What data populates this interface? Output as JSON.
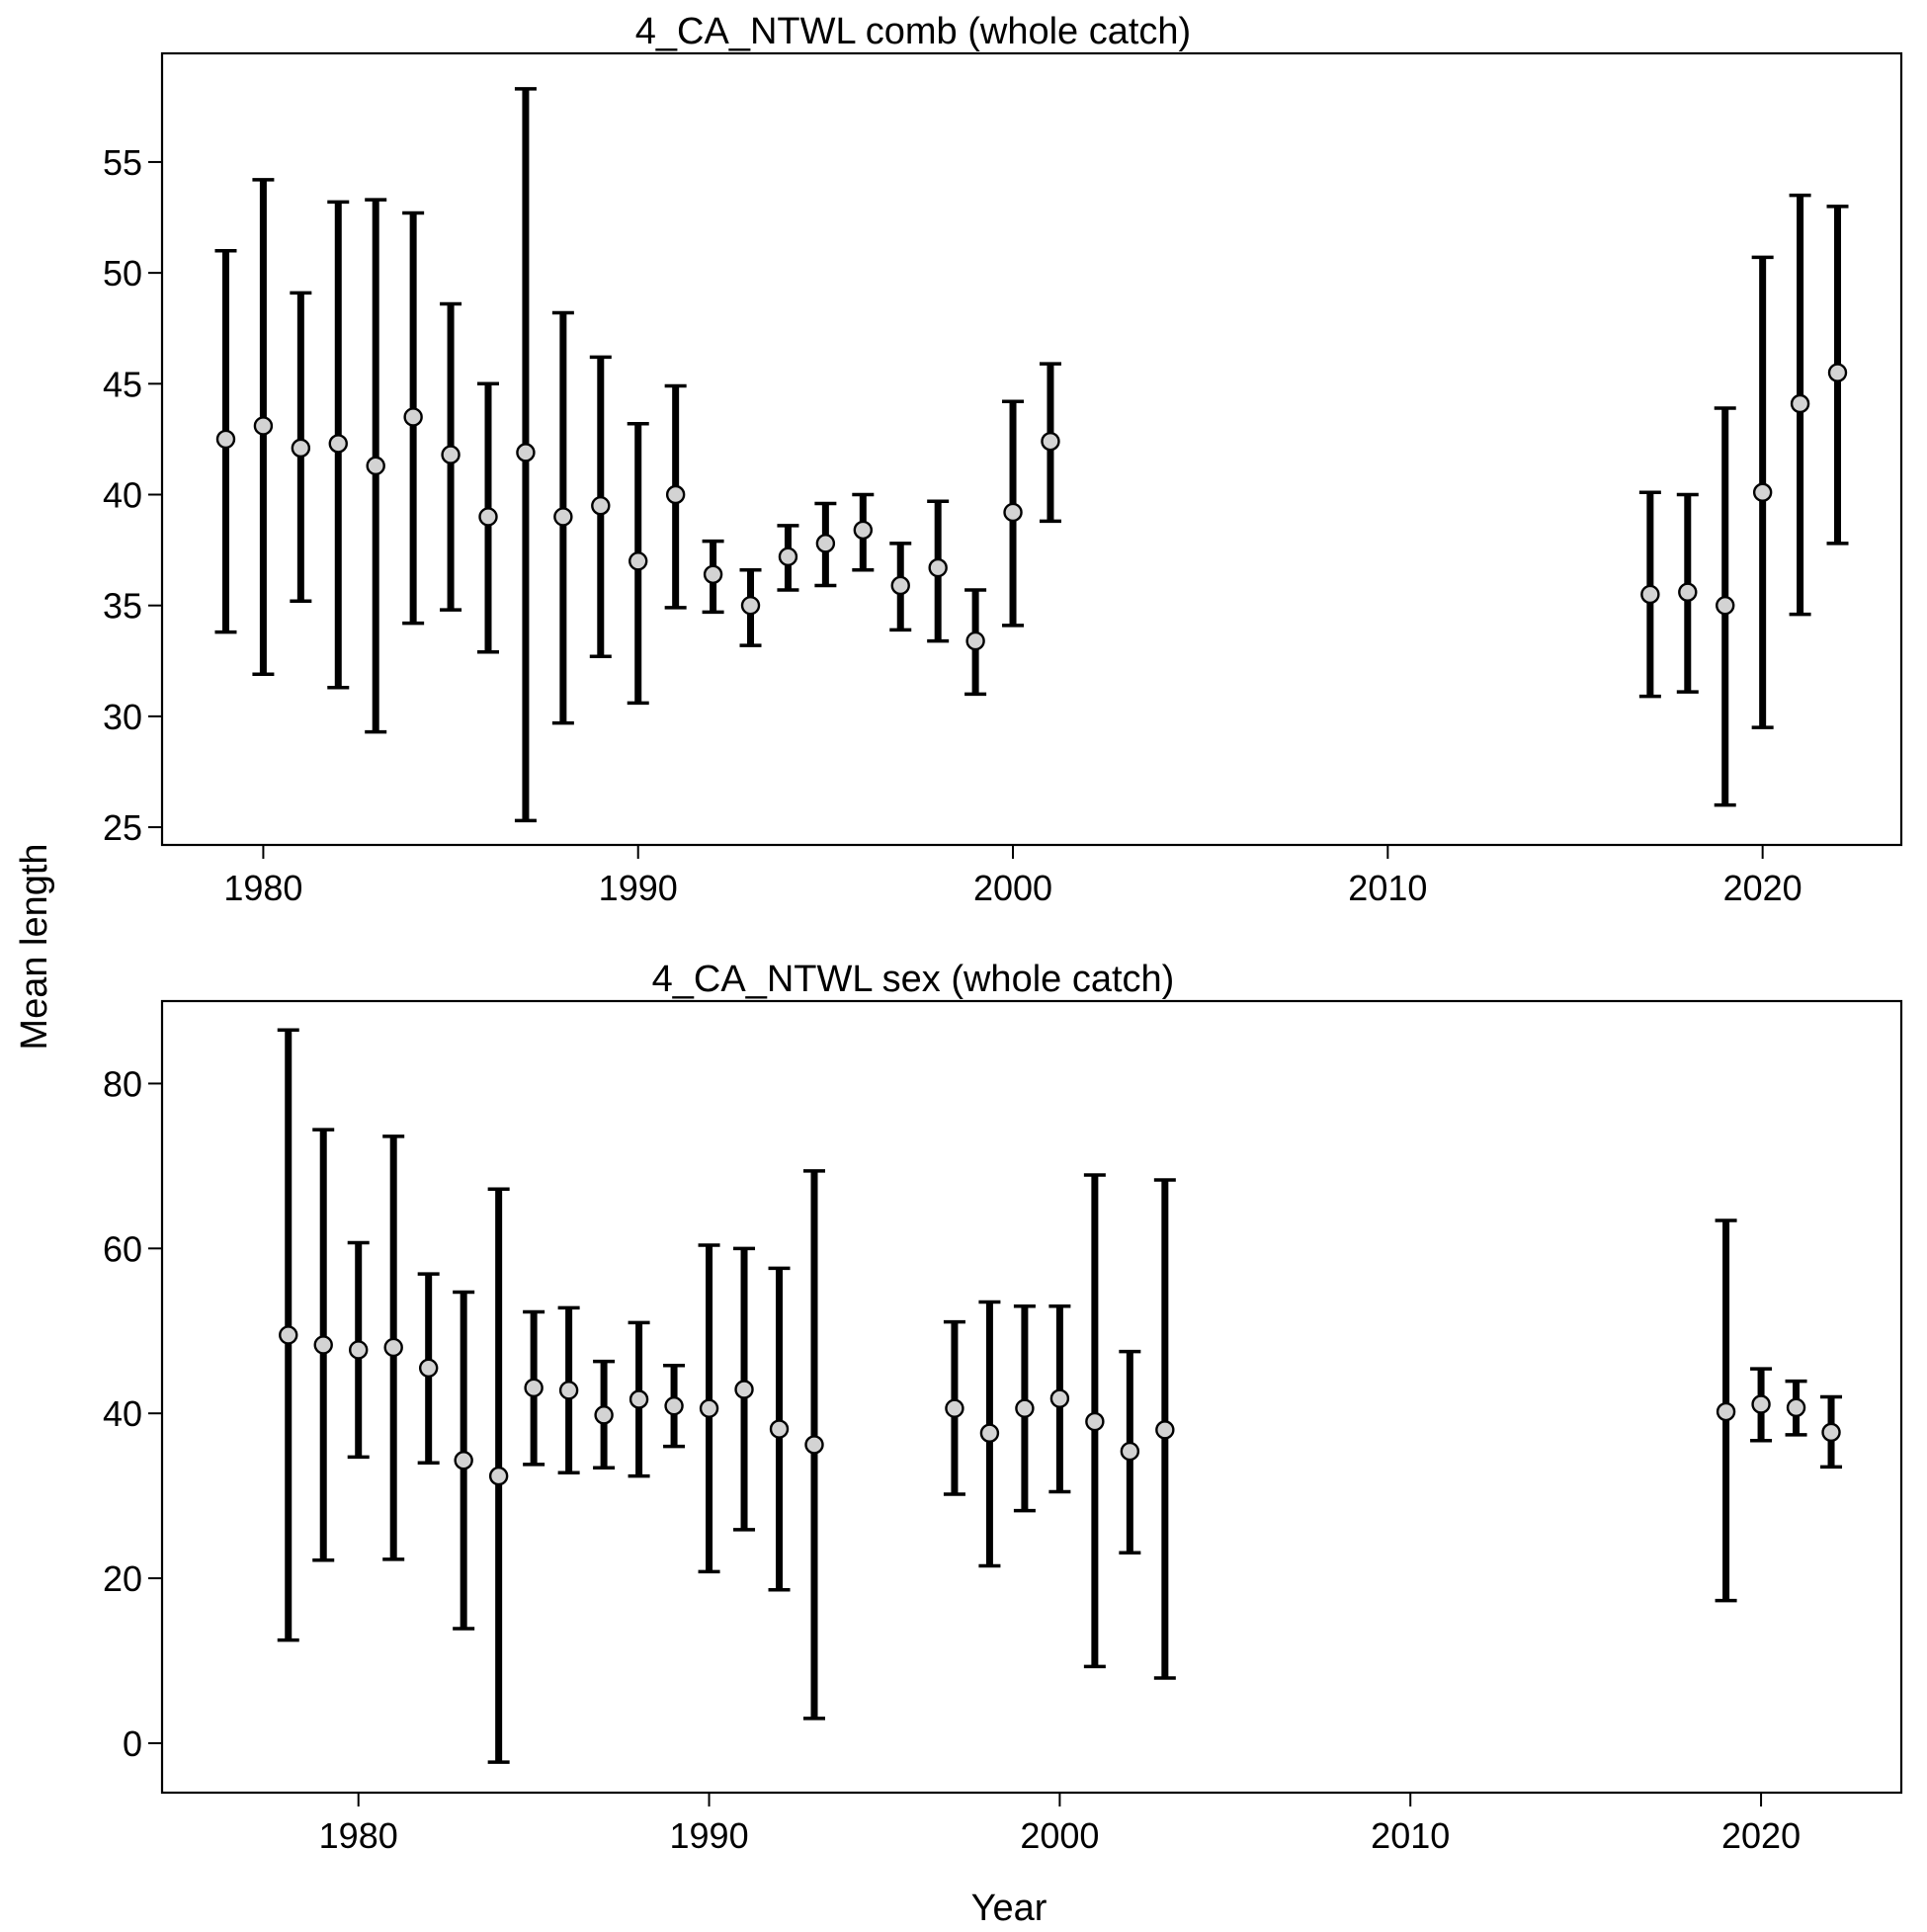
{
  "shared_ylabel": "Mean length",
  "shared_xlabel": "Year",
  "chart_data": [
    {
      "type": "scatter",
      "title": "4_CA_NTWL comb (whole catch)",
      "xlabel": "",
      "ylabel": "",
      "xlim": [
        1977.3,
        2023.7
      ],
      "ylim": [
        24.2,
        59.9
      ],
      "xticks": [
        1980,
        1990,
        2000,
        2010,
        2020
      ],
      "yticks": [
        25,
        30,
        35,
        40,
        45,
        50,
        55
      ],
      "grid": false,
      "error_bars": true,
      "points": [
        {
          "x": 1979,
          "y": 42.5,
          "lo": 33.8,
          "hi": 51.0
        },
        {
          "x": 1980,
          "y": 43.1,
          "lo": 31.9,
          "hi": 54.2
        },
        {
          "x": 1981,
          "y": 42.1,
          "lo": 35.2,
          "hi": 49.1
        },
        {
          "x": 1982,
          "y": 42.3,
          "lo": 31.3,
          "hi": 53.2
        },
        {
          "x": 1983,
          "y": 41.3,
          "lo": 29.3,
          "hi": 53.3
        },
        {
          "x": 1984,
          "y": 43.5,
          "lo": 34.2,
          "hi": 52.7
        },
        {
          "x": 1985,
          "y": 41.8,
          "lo": 34.8,
          "hi": 48.6
        },
        {
          "x": 1986,
          "y": 39.0,
          "lo": 32.9,
          "hi": 45.0
        },
        {
          "x": 1987,
          "y": 41.9,
          "lo": 25.3,
          "hi": 58.3
        },
        {
          "x": 1988,
          "y": 39.0,
          "lo": 29.7,
          "hi": 48.2
        },
        {
          "x": 1989,
          "y": 39.5,
          "lo": 32.7,
          "hi": 46.2
        },
        {
          "x": 1990,
          "y": 37.0,
          "lo": 30.6,
          "hi": 43.2
        },
        {
          "x": 1991,
          "y": 40.0,
          "lo": 34.9,
          "hi": 44.9
        },
        {
          "x": 1992,
          "y": 36.4,
          "lo": 34.7,
          "hi": 37.9
        },
        {
          "x": 1993,
          "y": 35.0,
          "lo": 33.2,
          "hi": 36.6
        },
        {
          "x": 1994,
          "y": 37.2,
          "lo": 35.7,
          "hi": 38.6
        },
        {
          "x": 1995,
          "y": 37.8,
          "lo": 35.9,
          "hi": 39.6
        },
        {
          "x": 1996,
          "y": 38.4,
          "lo": 36.6,
          "hi": 40.0
        },
        {
          "x": 1997,
          "y": 35.9,
          "lo": 33.9,
          "hi": 37.8
        },
        {
          "x": 1998,
          "y": 36.7,
          "lo": 33.4,
          "hi": 39.7
        },
        {
          "x": 1999,
          "y": 33.4,
          "lo": 31.0,
          "hi": 35.7
        },
        {
          "x": 2000,
          "y": 39.2,
          "lo": 34.1,
          "hi": 44.2
        },
        {
          "x": 2001,
          "y": 42.4,
          "lo": 38.8,
          "hi": 45.9
        },
        {
          "x": 2017,
          "y": 35.5,
          "lo": 30.9,
          "hi": 40.1
        },
        {
          "x": 2018,
          "y": 35.6,
          "lo": 31.1,
          "hi": 40.0
        },
        {
          "x": 2019,
          "y": 35.0,
          "lo": 26.0,
          "hi": 43.9
        },
        {
          "x": 2020,
          "y": 40.1,
          "lo": 29.5,
          "hi": 50.7
        },
        {
          "x": 2021,
          "y": 44.1,
          "lo": 34.6,
          "hi": 53.5
        },
        {
          "x": 2022,
          "y": 45.5,
          "lo": 37.8,
          "hi": 53.0
        }
      ]
    },
    {
      "type": "scatter",
      "title": "4_CA_NTWL sex (whole catch)",
      "xlabel": "",
      "ylabel": "",
      "xlim": [
        1974.4,
        2024
      ],
      "ylim": [
        -6,
        90
      ],
      "xticks": [
        1980,
        1990,
        2000,
        2010,
        2020
      ],
      "yticks": [
        0,
        20,
        40,
        60,
        80
      ],
      "grid": false,
      "error_bars": true,
      "points": [
        {
          "x": 1978,
          "y": 49.5,
          "lo": 12.5,
          "hi": 86.5
        },
        {
          "x": 1979,
          "y": 48.3,
          "lo": 22.2,
          "hi": 74.4
        },
        {
          "x": 1980,
          "y": 47.7,
          "lo": 34.7,
          "hi": 60.7
        },
        {
          "x": 1981,
          "y": 48.0,
          "lo": 22.3,
          "hi": 73.6
        },
        {
          "x": 1982,
          "y": 45.5,
          "lo": 34.0,
          "hi": 56.9
        },
        {
          "x": 1983,
          "y": 34.3,
          "lo": 13.9,
          "hi": 54.7
        },
        {
          "x": 1984,
          "y": 32.4,
          "lo": -2.3,
          "hi": 67.2
        },
        {
          "x": 1985,
          "y": 43.1,
          "lo": 33.8,
          "hi": 52.3
        },
        {
          "x": 1986,
          "y": 42.8,
          "lo": 32.8,
          "hi": 52.8
        },
        {
          "x": 1987,
          "y": 39.8,
          "lo": 33.4,
          "hi": 46.3
        },
        {
          "x": 1988,
          "y": 41.7,
          "lo": 32.4,
          "hi": 51.0
        },
        {
          "x": 1989,
          "y": 40.9,
          "lo": 36.0,
          "hi": 45.8
        },
        {
          "x": 1990,
          "y": 40.6,
          "lo": 20.8,
          "hi": 60.4
        },
        {
          "x": 1991,
          "y": 42.9,
          "lo": 25.9,
          "hi": 60.0
        },
        {
          "x": 1992,
          "y": 38.1,
          "lo": 18.6,
          "hi": 57.6
        },
        {
          "x": 1993,
          "y": 36.2,
          "lo": 3.0,
          "hi": 69.4
        },
        {
          "x": 1997,
          "y": 40.6,
          "lo": 30.2,
          "hi": 51.1
        },
        {
          "x": 1998,
          "y": 37.6,
          "lo": 21.5,
          "hi": 53.5
        },
        {
          "x": 1999,
          "y": 40.6,
          "lo": 28.2,
          "hi": 53.0
        },
        {
          "x": 2000,
          "y": 41.8,
          "lo": 30.5,
          "hi": 53.0
        },
        {
          "x": 2001,
          "y": 39.0,
          "lo": 9.3,
          "hi": 68.9
        },
        {
          "x": 2002,
          "y": 35.4,
          "lo": 23.1,
          "hi": 47.5
        },
        {
          "x": 2003,
          "y": 38.0,
          "lo": 7.9,
          "hi": 68.3
        },
        {
          "x": 2019,
          "y": 40.2,
          "lo": 17.3,
          "hi": 63.4
        },
        {
          "x": 2020,
          "y": 41.1,
          "lo": 36.7,
          "hi": 45.4
        },
        {
          "x": 2021,
          "y": 40.7,
          "lo": 37.4,
          "hi": 43.9
        },
        {
          "x": 2022,
          "y": 37.7,
          "lo": 33.5,
          "hi": 42.0
        }
      ]
    }
  ],
  "colors": {
    "axis": "#000000",
    "error_bar": "#000000",
    "marker_fill": "#d3d3d3",
    "marker_stroke": "#000000",
    "background": "#ffffff"
  }
}
